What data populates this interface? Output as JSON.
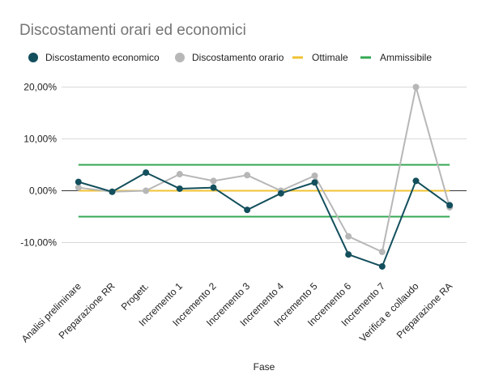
{
  "chart_data": {
    "type": "line",
    "title": "Discostamenti orari ed economici",
    "xlabel": "Fase",
    "ylabel": "",
    "categories": [
      "Analisi preliminare",
      "Preparazione RR",
      "Progett.",
      "Incremento 1",
      "Incremento 2",
      "Incremento 3",
      "Incremento 4",
      "Incremento 5",
      "Incremento 6",
      "Incremento 7",
      "Verifica e collaudo",
      "Preparazione RA"
    ],
    "series": [
      {
        "name": "Discostamento economico",
        "color": "#134f5c",
        "marker": "circle",
        "values": [
          1.7,
          -0.2,
          3.5,
          0.4,
          0.6,
          -3.7,
          -0.5,
          1.6,
          -12.3,
          -14.6,
          1.9,
          -2.8
        ]
      },
      {
        "name": "Discostamento orario",
        "color": "#b7b7b7",
        "marker": "circle",
        "values": [
          0.6,
          -0.2,
          0.0,
          3.2,
          1.9,
          3.0,
          0.0,
          2.9,
          -8.8,
          -11.8,
          20.0,
          -3.2
        ]
      },
      {
        "name": "Ottimale",
        "color": "#f1c232",
        "marker": "none",
        "values": [
          0,
          0,
          0,
          0,
          0,
          0,
          0,
          0,
          0,
          0,
          0,
          0
        ]
      },
      {
        "name": "Ammissibile",
        "color": "#34a853",
        "marker": "none",
        "values": [
          5,
          5,
          5,
          5,
          5,
          5,
          5,
          5,
          5,
          5,
          5,
          5
        ],
        "values_lower": [
          -5,
          -5,
          -5,
          -5,
          -5,
          -5,
          -5,
          -5,
          -5,
          -5,
          -5,
          -5
        ]
      }
    ],
    "yticks": [
      "20,00%",
      "10,00%",
      "0,00%",
      "-10,00%"
    ],
    "ytick_values": [
      20,
      10,
      0,
      -10
    ],
    "ylim": [
      -15,
      20
    ],
    "grid": true,
    "legend_position": "top-left"
  }
}
